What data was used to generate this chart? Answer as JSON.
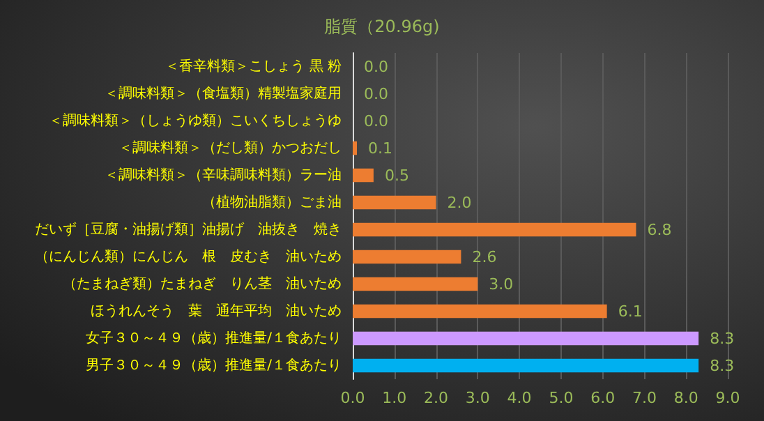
{
  "chart_data": {
    "type": "bar",
    "orientation": "horizontal",
    "title": "脂質（20.96g)",
    "categories": [
      "＜香辛料類＞こしょう 黒 粉",
      "＜調味料類＞（食塩類）精製塩家庭用",
      "＜調味料類＞（しょうゆ類）こいくちしょうゆ",
      "＜調味料類＞（だし類）かつおだし",
      "＜調味料類＞（辛味調味料類）ラー油",
      "（植物油脂類）ごま油",
      "だいず［豆腐・油揚げ類］油揚げ　油抜き　焼き",
      "（にんじん類）にんじん　根　皮むき　油いため",
      "（たまねぎ類）たまねぎ　りん茎　油いため",
      "ほうれんそう　葉　通年平均　油いため",
      "女子３０～４９（歳）推進量/１食あたり",
      "男子３０～４９（歳）推進量/１食あたり"
    ],
    "values": [
      0,
      0,
      0,
      0.1,
      0.5,
      2.0,
      6.8,
      2.6,
      3.0,
      6.1,
      8.3,
      8.3
    ],
    "value_labels": [
      "0.0",
      "0.0",
      "0.0",
      "0.1",
      "0.5",
      "2.0",
      "6.8",
      "2.6",
      "3.0",
      "6.1",
      "8.3",
      "8.3"
    ],
    "colors": [
      "#ed7d31",
      "#ed7d31",
      "#ed7d31",
      "#ed7d31",
      "#ed7d31",
      "#ed7d31",
      "#ed7d31",
      "#ed7d31",
      "#ed7d31",
      "#ed7d31",
      "#cc99ff",
      "#00b0f0"
    ],
    "xlim": [
      0,
      9
    ],
    "xticks": [
      {
        "value": 0,
        "label": "0.0"
      },
      {
        "value": 1,
        "label": "1.0"
      },
      {
        "value": 2,
        "label": "2.0"
      },
      {
        "value": 3,
        "label": "3.0"
      },
      {
        "value": 4,
        "label": "4.0"
      },
      {
        "value": 5,
        "label": "5.0"
      },
      {
        "value": 6,
        "label": "6.0"
      },
      {
        "value": 7,
        "label": "7.0"
      },
      {
        "value": 8,
        "label": "8.0"
      },
      {
        "value": 9,
        "label": "9.0"
      }
    ],
    "grid": "x"
  }
}
